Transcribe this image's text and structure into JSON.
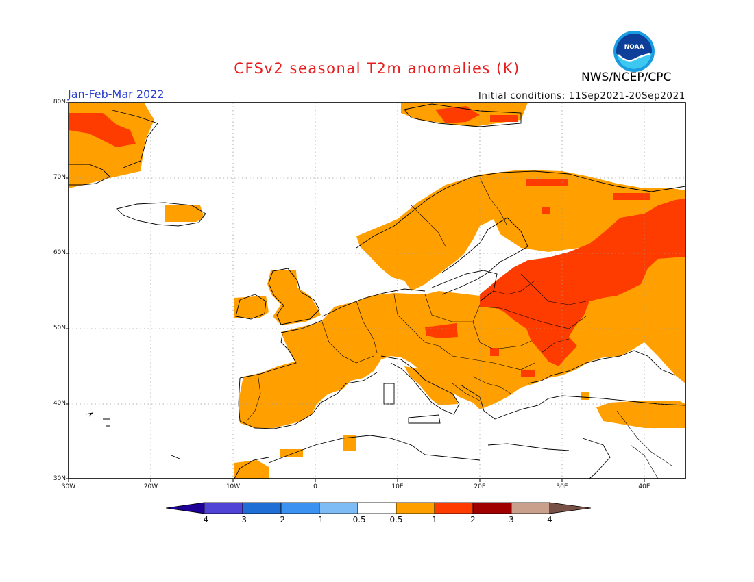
{
  "header": {
    "title": "CFSv2 seasonal T2m anomalies (K)",
    "agency": "NWS/NCEP/CPC",
    "season": "Jan-Feb-Mar 2022",
    "initial_conditions": "Initial conditions: 11Sep2021-20Sep2021",
    "logo_text": "NOAA"
  },
  "map": {
    "lat_labels": [
      "80N",
      "70N",
      "60N",
      "50N",
      "40N",
      "30N"
    ],
    "lon_labels": [
      "30W",
      "20W",
      "10W",
      "0",
      "10E",
      "20E",
      "30E",
      "40E"
    ]
  },
  "colorbar": {
    "tick_labels": [
      "-4",
      "-3",
      "-2",
      "-1",
      "-0.5",
      "0.5",
      "1",
      "2",
      "3",
      "4"
    ],
    "colors": [
      "#1e0096",
      "#5044d6",
      "#1f6ed6",
      "#3c92f0",
      "#7ebcf5",
      "#ffffff",
      "#ffa000",
      "#ff3c00",
      "#a00000",
      "#c8a08c",
      "#785046"
    ]
  },
  "colors": {
    "warm1": "#ffa000",
    "warm2": "#ff3c00",
    "title": "#e81c1c",
    "season": "#2a3fcf"
  }
}
